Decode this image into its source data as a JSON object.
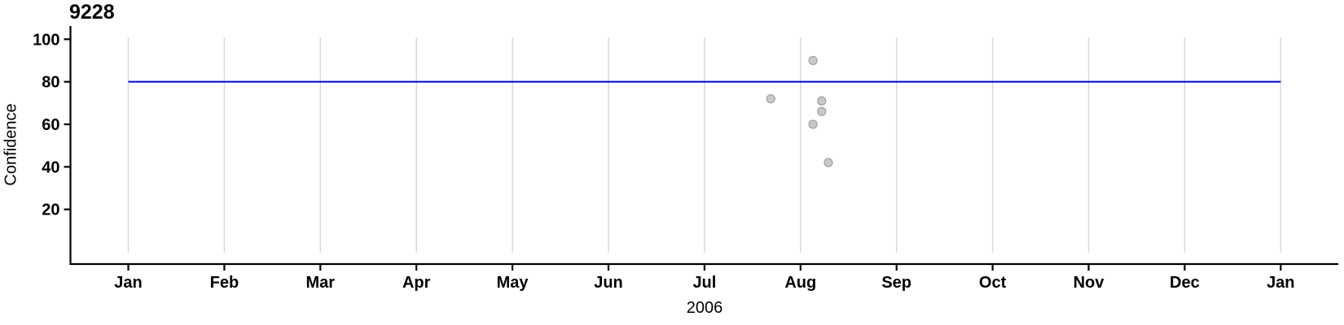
{
  "chart_data": {
    "type": "scatter",
    "title": "9228",
    "ylabel": "Confidence",
    "xlabel": "2006",
    "x_tick_labels": [
      "Jan",
      "Feb",
      "Mar",
      "Apr",
      "May",
      "Jun",
      "Jul",
      "Aug",
      "Sep",
      "Oct",
      "Nov",
      "Dec",
      "Jan"
    ],
    "y_ticks": [
      20,
      40,
      60,
      80,
      100
    ],
    "ylim": [
      0,
      100
    ],
    "xlim_months": [
      0,
      12
    ],
    "grid": "vertical-gridlines-at-each-month",
    "legend": "none",
    "reference_line": {
      "y": 80,
      "color": "#0000cc",
      "x_start_month": 0,
      "x_end_month": 12
    },
    "points": [
      {
        "x_month": 7.13,
        "date_approx": "2006-08-05",
        "y": 90
      },
      {
        "x_month": 6.69,
        "date_approx": "2006-07-22",
        "y": 72
      },
      {
        "x_month": 7.22,
        "date_approx": "2006-08-07",
        "y": 71
      },
      {
        "x_month": 7.22,
        "date_approx": "2006-08-07",
        "y": 66
      },
      {
        "x_month": 7.13,
        "date_approx": "2006-08-05",
        "y": 60
      },
      {
        "x_month": 7.29,
        "date_approx": "2006-08-09",
        "y": 42
      }
    ],
    "point_style": {
      "fill": "#c9c9c9",
      "stroke": "#a3a3a3"
    },
    "colors": {
      "axis": "#000000",
      "gridline": "#d9d9d9",
      "background": "#ffffff",
      "reference_line": "#0000cc"
    }
  }
}
